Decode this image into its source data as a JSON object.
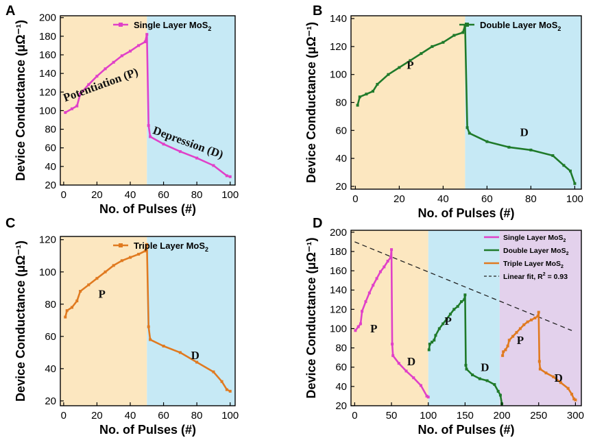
{
  "colors": {
    "peach": "#fce7c0",
    "blue": "#c6e9f5",
    "purple": "#e3d1ec",
    "single": "#e040c8",
    "double": "#1f7a2a",
    "triple": "#e07a20",
    "fit": "#222222",
    "axis": "#000000"
  },
  "chart_data": [
    {
      "panel": "A",
      "type": "line",
      "xlabel": "No. of Pulses (#)",
      "ylabel": "Device Conductance (μΩ⁻¹)",
      "xlim": [
        -2,
        103
      ],
      "ylim": [
        20,
        202
      ],
      "xticks": [
        0,
        20,
        40,
        60,
        80,
        100
      ],
      "yticks": [
        20,
        40,
        60,
        80,
        100,
        120,
        140,
        160,
        180,
        200
      ],
      "regions": [
        {
          "from": -2,
          "to": 50,
          "color": "peach"
        },
        {
          "from": 50,
          "to": 103,
          "color": "blue"
        }
      ],
      "legend": {
        "label": "Single Layer MoS",
        "sub": "2",
        "position": "top-right",
        "color": "single"
      },
      "annotations": [
        {
          "text": "Potentiation (P)",
          "x": 23,
          "y": 124,
          "rotate": -20
        },
        {
          "text": "Depression (D)",
          "x": 74,
          "y": 62,
          "rotate": 20
        }
      ],
      "series": [
        {
          "name": "Single Layer MoS2",
          "color": "single",
          "x": [
            1,
            5,
            8,
            10,
            15,
            20,
            25,
            30,
            35,
            40,
            45,
            49,
            50,
            51,
            52,
            60,
            70,
            80,
            90,
            98,
            100
          ],
          "y": [
            98,
            102,
            105,
            118,
            128,
            137,
            145,
            152,
            159,
            164,
            170,
            174,
            182,
            84,
            72,
            64,
            56,
            49,
            41,
            30,
            29
          ]
        }
      ]
    },
    {
      "panel": "B",
      "type": "line",
      "xlabel": "No. of Pulses (#)",
      "ylabel": "Device Conductance (μΩ⁻¹)",
      "xlim": [
        -2,
        103
      ],
      "ylim": [
        18,
        142
      ],
      "xticks": [
        0,
        20,
        40,
        60,
        80,
        100
      ],
      "yticks": [
        20,
        40,
        60,
        80,
        100,
        120,
        140
      ],
      "regions": [
        {
          "from": -2,
          "to": 50,
          "color": "peach"
        },
        {
          "from": 50,
          "to": 103,
          "color": "blue"
        }
      ],
      "legend": {
        "label": "Double Layer MoS",
        "sub": "2",
        "position": "top-right",
        "color": "double"
      },
      "annotations": [
        {
          "text": "P",
          "x": 25,
          "y": 104,
          "rotate": 0
        },
        {
          "text": "D",
          "x": 77,
          "y": 56,
          "rotate": 0
        }
      ],
      "series": [
        {
          "name": "Double Layer MoS2",
          "color": "double",
          "x": [
            1,
            2,
            5,
            8,
            10,
            15,
            20,
            25,
            30,
            35,
            40,
            45,
            49,
            50,
            51,
            52,
            60,
            70,
            80,
            90,
            95,
            98,
            100
          ],
          "y": [
            78,
            84,
            86,
            88,
            93,
            100,
            105,
            110,
            115,
            120,
            123,
            128,
            130,
            135,
            62,
            58,
            52,
            48,
            46,
            42,
            35,
            31,
            22
          ]
        }
      ]
    },
    {
      "panel": "C",
      "type": "line",
      "xlabel": "No. of Pulses (#)",
      "ylabel": "Device Conductance (μΩ⁻¹)",
      "xlim": [
        -2,
        103
      ],
      "ylim": [
        17,
        122
      ],
      "xticks": [
        0,
        20,
        40,
        60,
        80,
        100
      ],
      "yticks": [
        20,
        40,
        60,
        80,
        100,
        120
      ],
      "regions": [
        {
          "from": -2,
          "to": 50,
          "color": "peach"
        },
        {
          "from": 50,
          "to": 103,
          "color": "blue"
        }
      ],
      "legend": {
        "label": "Triple Layer MoS",
        "sub": "2",
        "position": "top-right",
        "color": "triple"
      },
      "annotations": [
        {
          "text": "P",
          "x": 23,
          "y": 84,
          "rotate": 0
        },
        {
          "text": "D",
          "x": 79,
          "y": 46,
          "rotate": 0
        }
      ],
      "series": [
        {
          "name": "Triple Layer MoS2",
          "color": "triple",
          "x": [
            1,
            2,
            5,
            8,
            10,
            15,
            20,
            25,
            30,
            35,
            40,
            45,
            49,
            50,
            51,
            52,
            60,
            70,
            80,
            90,
            95,
            98,
            100
          ],
          "y": [
            72,
            76,
            78,
            82,
            88,
            92,
            96,
            100,
            104,
            107,
            109,
            111,
            113,
            117,
            66,
            58,
            54,
            50,
            44,
            38,
            32,
            27,
            26
          ]
        }
      ]
    },
    {
      "panel": "D",
      "type": "line",
      "xlabel": "No. of Pulses (#)",
      "ylabel": "Device Conductance (μΩ⁻¹)",
      "xlim": [
        -5,
        308
      ],
      "ylim": [
        20,
        202
      ],
      "xticks": [
        0,
        50,
        100,
        150,
        200,
        250,
        300
      ],
      "yticks": [
        20,
        40,
        60,
        80,
        100,
        120,
        140,
        160,
        180,
        200
      ],
      "regions": [
        {
          "from": -5,
          "to": 100,
          "color": "peach"
        },
        {
          "from": 100,
          "to": 197,
          "color": "blue"
        },
        {
          "from": 197,
          "to": 308,
          "color": "purple"
        }
      ],
      "legend": {
        "entries": [
          {
            "label": "Single Layer MoS",
            "sub": "2",
            "color": "single",
            "style": "solid"
          },
          {
            "label": "Double Layer MoS",
            "sub": "2",
            "color": "double",
            "style": "solid"
          },
          {
            "label": "Triple Layer MoS",
            "sub": "2",
            "color": "triple",
            "style": "solid"
          },
          {
            "label": "Linear fit, R",
            "sup": "2",
            "tail": " = 0.93",
            "color": "fit",
            "style": "dashed"
          }
        ],
        "position": "top-right"
      },
      "annotations": [
        {
          "text": "P",
          "x": 26,
          "y": 96,
          "rotate": 0
        },
        {
          "text": "D",
          "x": 77,
          "y": 62,
          "rotate": 0
        },
        {
          "text": "P",
          "x": 127,
          "y": 104,
          "rotate": 0
        },
        {
          "text": "D",
          "x": 177,
          "y": 56,
          "rotate": 0
        },
        {
          "text": "P",
          "x": 225,
          "y": 84,
          "rotate": 0
        },
        {
          "text": "D",
          "x": 277,
          "y": 45,
          "rotate": 0
        }
      ],
      "fit": {
        "x": [
          0,
          295
        ],
        "y": [
          190,
          98
        ]
      },
      "series": [
        {
          "name": "Single Layer MoS2",
          "color": "single",
          "x": [
            1,
            5,
            8,
            10,
            15,
            20,
            25,
            30,
            35,
            40,
            45,
            49,
            50,
            51,
            52,
            60,
            70,
            80,
            90,
            98,
            100
          ],
          "y": [
            98,
            102,
            105,
            118,
            128,
            137,
            145,
            152,
            159,
            164,
            170,
            174,
            182,
            84,
            72,
            64,
            56,
            49,
            41,
            30,
            29
          ]
        },
        {
          "name": "Double Layer MoS2",
          "color": "double",
          "x": [
            101,
            102,
            105,
            108,
            110,
            115,
            120,
            125,
            130,
            135,
            140,
            145,
            149,
            150,
            151,
            152,
            160,
            170,
            180,
            190,
            195,
            198,
            200
          ],
          "y": [
            78,
            84,
            86,
            88,
            93,
            100,
            105,
            110,
            115,
            120,
            123,
            128,
            130,
            135,
            62,
            58,
            52,
            48,
            46,
            42,
            35,
            31,
            22
          ]
        },
        {
          "name": "Triple Layer MoS2",
          "color": "triple",
          "x": [
            201,
            202,
            205,
            208,
            210,
            215,
            220,
            225,
            230,
            235,
            240,
            245,
            249,
            250,
            251,
            252,
            260,
            270,
            280,
            290,
            295,
            298,
            300
          ],
          "y": [
            72,
            76,
            78,
            82,
            88,
            92,
            96,
            100,
            104,
            107,
            109,
            111,
            113,
            117,
            66,
            58,
            54,
            50,
            44,
            38,
            32,
            27,
            26
          ]
        }
      ]
    }
  ]
}
